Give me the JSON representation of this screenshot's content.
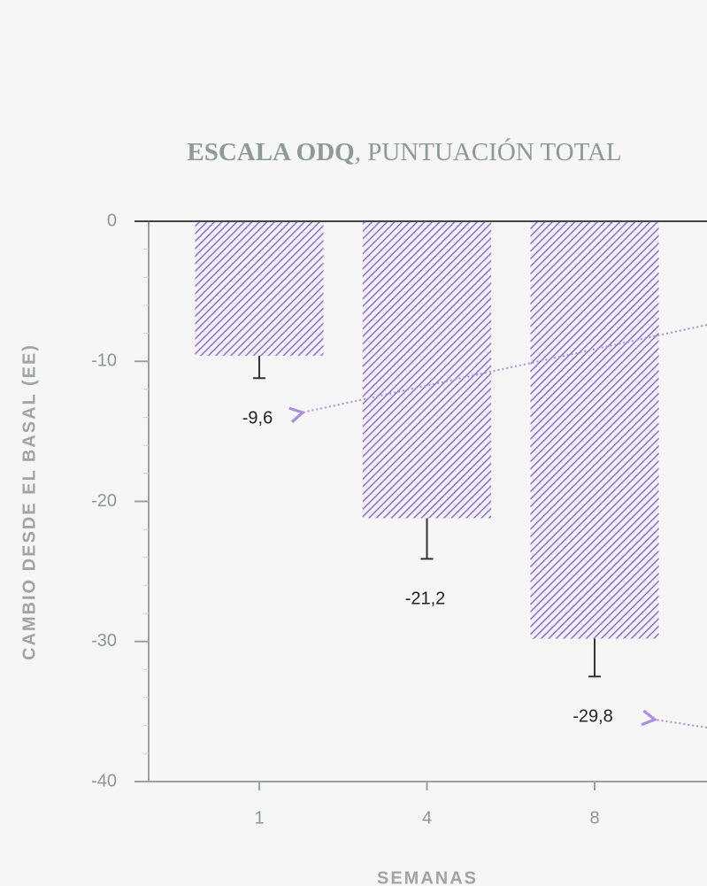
{
  "chart_data": {
    "type": "bar",
    "title": {
      "bold": "ESCALA ODQ",
      "rest": ", PUNTUACIÓN TOTAL"
    },
    "y_label": "CAMBIO DESDE EL BASAL (EE)",
    "x_label": "SEMANAS",
    "categories": [
      "1",
      "4",
      "8"
    ],
    "values": [
      -9.6,
      -21.2,
      -29.8
    ],
    "value_labels": [
      "-9,6",
      "-21,2",
      "-29,8"
    ],
    "errors": [
      1.6,
      2.9,
      2.7
    ],
    "color": "#7d5fcc",
    "ylim": [
      -40,
      0
    ],
    "yticks": [
      0,
      -10,
      -20,
      -30,
      -40
    ]
  }
}
